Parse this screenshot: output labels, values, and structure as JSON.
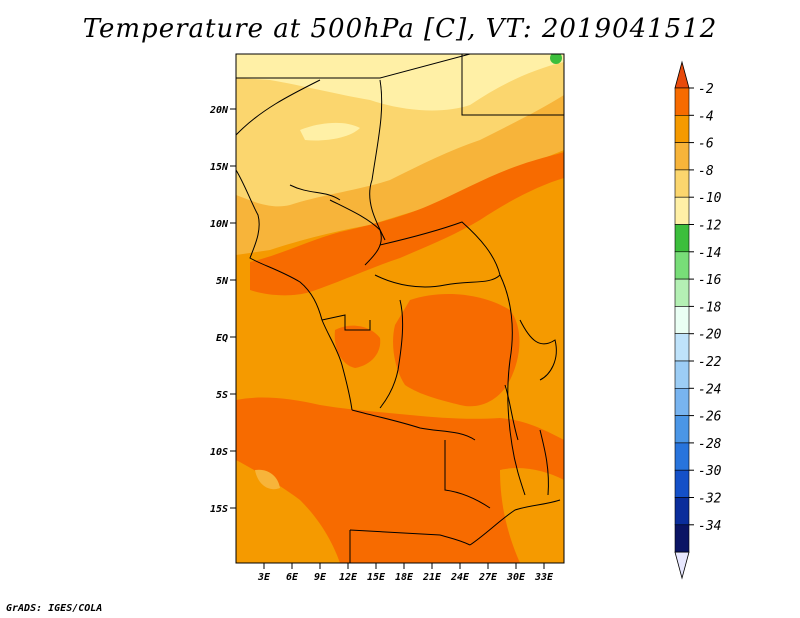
{
  "title": "Temperature at 500hPa [C], VT: 2019041512",
  "credit": "GrADS: IGES/COLA",
  "map": {
    "region": "Central / East Africa",
    "lat_ticks": [
      "20N",
      "15N",
      "10N",
      "5N",
      "EQ",
      "5S",
      "10S",
      "15S"
    ],
    "lon_ticks": [
      "3E",
      "6E",
      "9E",
      "12E",
      "15E",
      "18E",
      "21E",
      "24E",
      "27E",
      "30E",
      "33E"
    ]
  },
  "colorbar": {
    "levels": [
      "-2",
      "-4",
      "-6",
      "-8",
      "-10",
      "-12",
      "-14",
      "-16",
      "-18",
      "-20",
      "-22",
      "-24",
      "-26",
      "-28",
      "-30",
      "-32",
      "-34"
    ],
    "colors": [
      "#e84a0c",
      "#f76b00",
      "#f59a00",
      "#f7b43a",
      "#fbd66e",
      "#fff0a6",
      "#3cbe3c",
      "#78dd78",
      "#b4f0b4",
      "#eafff4",
      "#bfe3fb",
      "#9ccdf5",
      "#78b4f0",
      "#4b96e6",
      "#2874dc",
      "#1450c8",
      "#0a2d9b",
      "#0a1464",
      "#e8e8ff"
    ]
  },
  "colors": {
    "deep_orange": "#f76b00",
    "mid_orange": "#f59a00",
    "light_orange": "#f7b43a",
    "pale_yellow": "#fbd66e",
    "cream": "#fff0a6",
    "green": "#3cbe3c",
    "border": "#000000"
  }
}
